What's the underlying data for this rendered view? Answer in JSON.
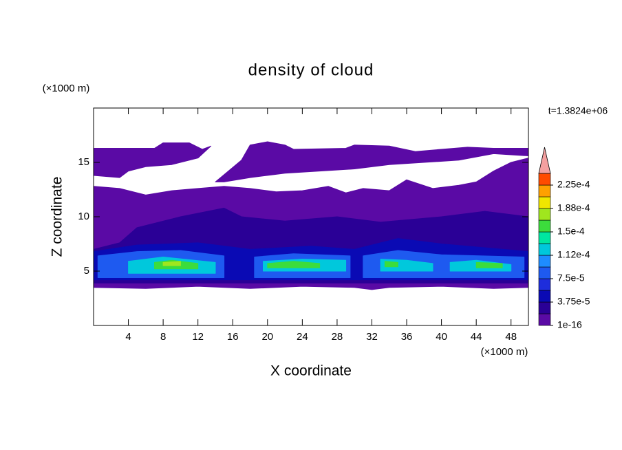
{
  "chart_data": {
    "type": "contour",
    "title": "density of cloud",
    "x_label": "X coordinate",
    "y_label": "Z coordinate",
    "x_unit": "(×1000 m)",
    "y_unit": "(×1000 m)",
    "time_label": "t=1.3824e+06",
    "xlim": [
      0,
      50
    ],
    "ylim": [
      0,
      20
    ],
    "xticks": [
      4,
      8,
      12,
      16,
      20,
      24,
      28,
      32,
      36,
      40,
      44,
      48
    ],
    "yticks": [
      5,
      10,
      15
    ],
    "colorbar": {
      "levels": [
        1e-16,
        1.875e-05,
        3.75e-05,
        5.625e-05,
        7.5e-05,
        9.375e-05,
        0.0001125,
        0.00013125,
        0.00015,
        0.00016875,
        0.0001875,
        0.00020625,
        0.000225
      ],
      "colors": [
        "#5a0aa5",
        "#2a0096",
        "#0a0ab4",
        "#1e2ddc",
        "#1e5af0",
        "#1e8cff",
        "#00c8dc",
        "#00e6a0",
        "#3cdc3c",
        "#a0e61e",
        "#f0e600",
        "#ffa000",
        "#ff4b00"
      ],
      "over_color": "#f4a0a0",
      "ticks": [
        1e-16,
        {
          "value": 3.75e-05,
          "label": "3.75e-5"
        },
        {
          "value": 7.5e-05,
          "label": "7.5e-5"
        },
        {
          "value": 0.0001125,
          "label": "1.12e-4"
        },
        {
          "value": 0.00015,
          "label": "1.5e-4"
        },
        {
          "value": 0.0001875,
          "label": "1.88e-4"
        },
        {
          "value": 0.000225,
          "label": "2.25e-4"
        }
      ]
    },
    "regions": [
      {
        "level": 1e-16,
        "x": [
          0,
          3,
          6,
          9,
          12,
          15,
          18,
          21,
          24,
          27,
          29,
          31,
          34,
          36,
          39,
          42,
          44,
          46,
          48,
          50,
          50,
          46,
          40,
          34,
          32,
          30,
          24,
          18,
          12,
          6,
          0
        ],
        "z": [
          12.8,
          12.6,
          12.0,
          12.4,
          12.6,
          12.8,
          12.6,
          12.3,
          12.4,
          12.8,
          12.2,
          12.6,
          12.4,
          13.4,
          12.6,
          12.9,
          13.2,
          14.2,
          15.0,
          15.4,
          3.5,
          3.4,
          3.6,
          3.5,
          3.3,
          3.5,
          3.6,
          3.4,
          3.6,
          3.4,
          3.5
        ]
      },
      {
        "level": 1e-16,
        "x": [
          0,
          4,
          7,
          8,
          11,
          12.5,
          13.5,
          12,
          9,
          6,
          4,
          3,
          0
        ],
        "z": [
          16.3,
          16.3,
          16.3,
          16.8,
          16.8,
          16.2,
          16.5,
          15.4,
          14.8,
          14.6,
          14.2,
          13.6,
          13.8
        ]
      },
      {
        "level": 1e-16,
        "x": [
          14,
          17,
          18,
          20,
          22,
          23,
          29,
          30,
          34,
          37,
          40,
          43,
          46,
          50,
          50,
          46,
          42,
          38,
          34,
          30,
          26,
          22,
          18,
          15
        ],
        "z": [
          13.2,
          15.2,
          16.6,
          16.9,
          16.6,
          16.2,
          16.3,
          16.6,
          16.5,
          16.0,
          16.2,
          16.4,
          16.3,
          16.3,
          15.6,
          15.8,
          15.2,
          15.0,
          14.8,
          14.4,
          14.2,
          14.0,
          13.6,
          13.2
        ]
      },
      {
        "level": 1.875e-05,
        "x": [
          0,
          3,
          5,
          10,
          15,
          17,
          22,
          28,
          33,
          40,
          45,
          50,
          50,
          0
        ],
        "z": [
          7.0,
          7.6,
          9.0,
          10.0,
          10.8,
          10.0,
          9.6,
          10.0,
          9.5,
          10.0,
          10.5,
          10.0,
          3.9,
          3.9
        ]
      },
      {
        "level": 3.75e-05,
        "x": [
          0,
          5,
          12,
          18,
          25,
          30,
          35,
          40,
          50,
          50,
          0
        ],
        "z": [
          6.8,
          7.4,
          7.6,
          7.0,
          7.3,
          7.0,
          8.0,
          7.5,
          6.8,
          4.2,
          4.2
        ]
      },
      {
        "level": 7.5e-05,
        "x": [
          0.5,
          5,
          10,
          15,
          15,
          0.5
        ],
        "z": [
          6.4,
          6.8,
          6.9,
          6.4,
          4.4,
          4.4
        ]
      },
      {
        "level": 7.5e-05,
        "x": [
          18.5,
          23,
          29.5,
          29.5,
          18.5
        ],
        "z": [
          6.3,
          6.6,
          6.4,
          4.4,
          4.4
        ]
      },
      {
        "level": 7.5e-05,
        "x": [
          31,
          35,
          40,
          49.5,
          49.5,
          31
        ],
        "z": [
          6.4,
          6.9,
          6.5,
          6.3,
          4.4,
          4.4
        ]
      },
      {
        "level": 0.0001125,
        "x": [
          4,
          8,
          14,
          14,
          4
        ],
        "z": [
          5.9,
          6.3,
          5.8,
          4.8,
          4.8
        ]
      },
      {
        "level": 0.0001125,
        "x": [
          19.5,
          24,
          29,
          29,
          19.5
        ],
        "z": [
          5.9,
          6.1,
          6.0,
          5.0,
          5.0
        ]
      },
      {
        "level": 0.0001125,
        "x": [
          33,
          36,
          39,
          39,
          33
        ],
        "z": [
          6.1,
          6.0,
          5.7,
          5.0,
          5.0
        ]
      },
      {
        "level": 0.0001125,
        "x": [
          41,
          44,
          48,
          48,
          41
        ],
        "z": [
          5.8,
          6.0,
          5.6,
          5.0,
          5.0
        ]
      },
      {
        "level": 0.00015,
        "x": [
          7,
          9,
          12,
          12,
          7
        ],
        "z": [
          5.8,
          6.0,
          5.7,
          5.2,
          5.2
        ]
      },
      {
        "level": 0.00015,
        "x": [
          20,
          23,
          26,
          26,
          20
        ],
        "z": [
          5.7,
          5.9,
          5.7,
          5.3,
          5.3
        ]
      },
      {
        "level": 0.00015,
        "x": [
          33.5,
          35,
          35,
          33.5
        ],
        "z": [
          5.9,
          5.8,
          5.4,
          5.4
        ]
      },
      {
        "level": 0.00015,
        "x": [
          44,
          47,
          47,
          44
        ],
        "z": [
          5.8,
          5.7,
          5.3,
          5.3
        ]
      },
      {
        "level": 0.00016875,
        "x": [
          8,
          10,
          10,
          8
        ],
        "z": [
          5.8,
          5.9,
          5.5,
          5.5
        ]
      }
    ]
  }
}
